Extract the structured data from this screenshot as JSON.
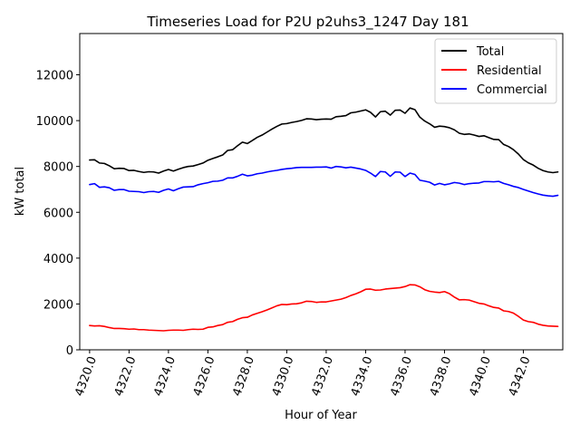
{
  "chart_data": {
    "type": "line",
    "title": "Timeseries Load for P2U p2uhs3_1247  Day 181",
    "xlabel": "Hour of Year",
    "ylabel": "kW total",
    "xlim": [
      4319.5,
      4344.0
    ],
    "ylim": [
      0,
      13800
    ],
    "x_ticks": [
      4320,
      4322,
      4324,
      4326,
      4328,
      4330,
      4332,
      4334,
      4336,
      4338,
      4340,
      4342
    ],
    "x_tick_labels": [
      "4320.0",
      "4322.0",
      "4324.0",
      "4326.0",
      "4328.0",
      "4330.0",
      "4332.0",
      "4334.0",
      "4336.0",
      "4338.0",
      "4340.0",
      "4342.0"
    ],
    "y_ticks": [
      0,
      2000,
      4000,
      6000,
      8000,
      10000,
      12000
    ],
    "y_tick_labels": [
      "0",
      "2000",
      "4000",
      "6000",
      "8000",
      "10000",
      "12000"
    ],
    "grid": false,
    "legend_position": "top-right",
    "x": [
      4320.0,
      4320.25,
      4320.5,
      4320.75,
      4321.0,
      4321.25,
      4321.5,
      4321.75,
      4322.0,
      4322.25,
      4322.5,
      4322.75,
      4323.0,
      4323.25,
      4323.5,
      4323.75,
      4324.0,
      4324.25,
      4324.5,
      4324.75,
      4325.0,
      4325.25,
      4325.5,
      4325.75,
      4326.0,
      4326.25,
      4326.5,
      4326.75,
      4327.0,
      4327.25,
      4327.5,
      4327.75,
      4328.0,
      4328.25,
      4328.5,
      4328.75,
      4329.0,
      4329.25,
      4329.5,
      4329.75,
      4330.0,
      4330.25,
      4330.5,
      4330.75,
      4331.0,
      4331.25,
      4331.5,
      4331.75,
      4332.0,
      4332.25,
      4332.5,
      4332.75,
      4333.0,
      4333.25,
      4333.5,
      4333.75,
      4334.0,
      4334.25,
      4334.5,
      4334.75,
      4335.0,
      4335.25,
      4335.5,
      4335.75,
      4336.0,
      4336.25,
      4336.5,
      4336.75,
      4337.0,
      4337.25,
      4337.5,
      4337.75,
      4338.0,
      4338.25,
      4338.5,
      4338.75,
      4339.0,
      4339.25,
      4339.5,
      4339.75,
      4340.0,
      4340.25,
      4340.5,
      4340.75,
      4341.0,
      4341.25,
      4341.5,
      4341.75,
      4342.0,
      4342.25,
      4342.5,
      4342.75,
      4343.0,
      4343.25,
      4343.5,
      4343.75
    ],
    "series": [
      {
        "name": "Total",
        "color": "#000000",
        "values": [
          8280,
          8290,
          8150,
          8130,
          8030,
          7900,
          7920,
          7910,
          7820,
          7830,
          7780,
          7740,
          7770,
          7760,
          7710,
          7800,
          7870,
          7800,
          7880,
          7950,
          8000,
          8020,
          8080,
          8150,
          8270,
          8350,
          8420,
          8500,
          8700,
          8730,
          8900,
          9060,
          9000,
          9130,
          9270,
          9370,
          9500,
          9630,
          9750,
          9850,
          9870,
          9920,
          9960,
          10010,
          10080,
          10070,
          10040,
          10060,
          10070,
          10060,
          10170,
          10190,
          10220,
          10340,
          10370,
          10420,
          10470,
          10360,
          10160,
          10390,
          10410,
          10240,
          10450,
          10460,
          10320,
          10550,
          10480,
          10150,
          9980,
          9860,
          9710,
          9760,
          9740,
          9690,
          9600,
          9450,
          9400,
          9420,
          9370,
          9310,
          9340,
          9260,
          9180,
          9170,
          8960,
          8870,
          8730,
          8540,
          8300,
          8160,
          8060,
          7920,
          7820,
          7760,
          7730,
          7760
        ]
      },
      {
        "name": "Residential",
        "color": "#ff0000",
        "values": [
          1060,
          1040,
          1050,
          1020,
          970,
          930,
          930,
          920,
          900,
          910,
          880,
          880,
          860,
          850,
          840,
          830,
          850,
          860,
          860,
          850,
          880,
          900,
          890,
          900,
          980,
          1000,
          1060,
          1100,
          1200,
          1230,
          1330,
          1400,
          1420,
          1520,
          1590,
          1660,
          1740,
          1830,
          1920,
          1980,
          1970,
          2000,
          2010,
          2050,
          2120,
          2110,
          2070,
          2090,
          2090,
          2130,
          2170,
          2210,
          2280,
          2370,
          2440,
          2530,
          2640,
          2650,
          2600,
          2610,
          2650,
          2670,
          2690,
          2710,
          2760,
          2840,
          2830,
          2750,
          2620,
          2550,
          2520,
          2500,
          2540,
          2450,
          2300,
          2180,
          2190,
          2170,
          2100,
          2030,
          2000,
          1920,
          1850,
          1820,
          1700,
          1670,
          1600,
          1460,
          1300,
          1230,
          1200,
          1120,
          1070,
          1040,
          1030,
          1020
        ]
      },
      {
        "name": "Commercial",
        "color": "#0000ff",
        "values": [
          7210,
          7250,
          7090,
          7110,
          7070,
          6960,
          6990,
          6990,
          6920,
          6910,
          6900,
          6860,
          6900,
          6910,
          6870,
          6960,
          7020,
          6940,
          7030,
          7100,
          7110,
          7120,
          7200,
          7250,
          7290,
          7350,
          7360,
          7400,
          7500,
          7500,
          7570,
          7660,
          7590,
          7620,
          7680,
          7710,
          7760,
          7800,
          7830,
          7870,
          7900,
          7920,
          7950,
          7960,
          7960,
          7960,
          7970,
          7970,
          7980,
          7930,
          8000,
          7980,
          7940,
          7970,
          7930,
          7890,
          7830,
          7710,
          7560,
          7780,
          7760,
          7570,
          7760,
          7750,
          7560,
          7710,
          7650,
          7400,
          7360,
          7310,
          7190,
          7260,
          7200,
          7240,
          7300,
          7270,
          7210,
          7250,
          7270,
          7280,
          7340,
          7340,
          7330,
          7350,
          7260,
          7200,
          7130,
          7080,
          7000,
          6930,
          6860,
          6800,
          6750,
          6720,
          6700,
          6740
        ]
      }
    ]
  }
}
